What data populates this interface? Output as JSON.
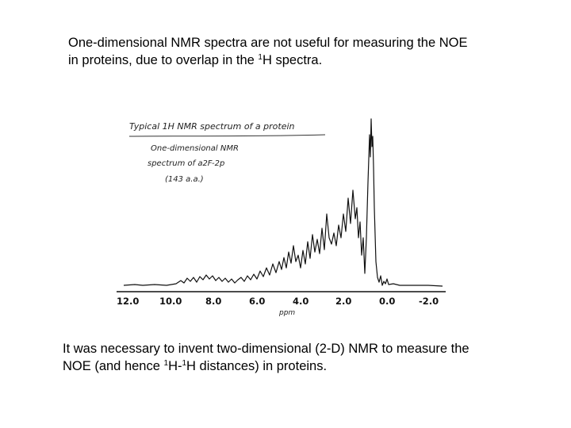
{
  "top_caption": {
    "line1": "One-dimensional NMR spectra are not useful for measuring the NOE",
    "line2_a": "in proteins, due to overlap in the ",
    "line2_sup": "1",
    "line2_b": "H spectra."
  },
  "figure": {
    "note_title": "Typical 1H NMR spectrum of a protein",
    "note_line1": "One-dimensional NMR",
    "note_line2": "spectrum of a2F-2p",
    "note_line3": "(143 a.a.)",
    "x_ticks": [
      "12.0",
      "10.0",
      "8.0",
      "6.0",
      "4.0",
      "2.0",
      "0.0",
      "-2.0"
    ],
    "x_unit": "ppm"
  },
  "bottom_caption": {
    "line1": "It was necessary to invent two-dimensional (2-D) NMR to measure the",
    "line2_a": "NOE (and hence ",
    "sup1": "1",
    "line2_b": "H-",
    "sup2": "1",
    "line2_c": "H distances) in proteins."
  }
}
